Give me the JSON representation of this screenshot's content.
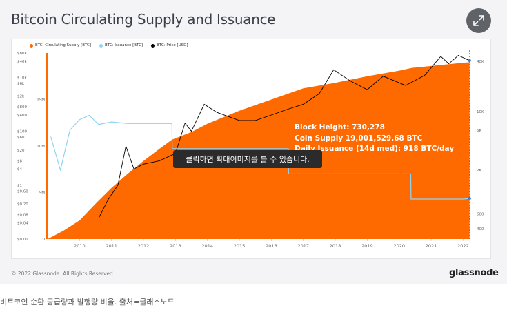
{
  "title": "Bitcoin Circulating Supply and Issuance",
  "expand_icon": "expand-arrows-icon",
  "tooltip": "클릭하면 확대이미지를 볼 수 있습니다.",
  "copyright": "© 2022 Glassnode. All Rights Reserved.",
  "brand": "glassnode",
  "caption": "비트코인 순환 공급량과 발행량 비율. 출처=글래스노드",
  "colors": {
    "supply": "#ff6a00",
    "issuance": "#8fd3f4",
    "price": "#000000",
    "marker": "#3a7bd5"
  },
  "chart_data": {
    "type": "area",
    "legend": [
      "BTC: Circulating Supply [BTC]",
      "BTC: Issuance [BTC]",
      "BTC: Price [USD]"
    ],
    "legend_placement": "top-left",
    "x_ticks": [
      "2010",
      "2011",
      "2012",
      "2013",
      "2014",
      "2015",
      "2016",
      "2017",
      "2018",
      "2019",
      "2020",
      "2021",
      "2022"
    ],
    "x_range": [
      2009.0,
      2022.25
    ],
    "price_axis_ticks": [
      "$80k",
      "$40k",
      "$10k",
      "$6k",
      "$2k",
      "$800",
      "$400",
      "$100",
      "$60",
      "$20",
      "$8",
      "$4",
      "$1",
      "$0.60",
      "$0.20",
      "$0.08",
      "$0.04",
      "$0.01"
    ],
    "supply_axis_ticks": [
      "15M",
      "10M",
      "5M",
      "0"
    ],
    "issuance_axis_ticks": [
      "40K",
      "10K",
      "6K",
      "2K",
      "600",
      "400"
    ],
    "annotation": {
      "block_height": "Block Height: 730,278",
      "coin_supply": "Coin Supply 19,001,529.68 BTC",
      "daily_issuance": "Daily Issuance (14d med): 918 BTC/day"
    },
    "series": [
      {
        "name": "BTC: Circulating Supply [BTC]",
        "x": [
          2009.0,
          2009.5,
          2010.0,
          2010.5,
          2011.0,
          2011.5,
          2012.0,
          2012.5,
          2012.9,
          2013.5,
          2014.0,
          2015.0,
          2016.0,
          2016.5,
          2017.0,
          2018.0,
          2019.0,
          2020.0,
          2020.4,
          2021.0,
          2022.0,
          2022.2
        ],
        "y": [
          0,
          900000,
          2000000,
          3800000,
          5500000,
          7000000,
          8400000,
          9700000,
          10700000,
          11500000,
          12400000,
          13800000,
          15000000,
          15600000,
          16200000,
          16800000,
          17500000,
          18100000,
          18400000,
          18600000,
          18950000,
          19001530
        ]
      },
      {
        "name": "BTC: Price [USD]",
        "x": [
          2010.6,
          2010.9,
          2011.2,
          2011.45,
          2011.7,
          2012.0,
          2012.5,
          2013.0,
          2013.3,
          2013.5,
          2013.9,
          2014.3,
          2015.0,
          2015.5,
          2016.0,
          2016.5,
          2017.0,
          2017.5,
          2017.95,
          2018.5,
          2019.0,
          2019.5,
          2020.2,
          2020.8,
          2021.3,
          2021.55,
          2021.85,
          2022.2
        ],
        "y": [
          0.06,
          0.3,
          1,
          28,
          4,
          6,
          8,
          15,
          200,
          100,
          1000,
          500,
          250,
          250,
          400,
          650,
          1000,
          2500,
          19000,
          7000,
          3500,
          11000,
          5000,
          12000,
          60000,
          32000,
          65000,
          42000
        ]
      },
      {
        "name": "BTC: Issuance [BTC]",
        "x": [
          2009.1,
          2009.4,
          2009.7,
          2010.0,
          2010.3,
          2010.6,
          2011.0,
          2011.5,
          2012.0,
          2012.5,
          2012.89,
          2012.9,
          2014.0,
          2015.0,
          2016.0,
          2016.53,
          2016.54,
          2017.0,
          2018.0,
          2019.0,
          2020.0,
          2020.36,
          2020.37,
          2021.0,
          2022.0,
          2022.2
        ],
        "y": [
          5000,
          2000,
          6000,
          8000,
          9000,
          7000,
          7500,
          7200,
          7200,
          7200,
          7200,
          3600,
          3600,
          3600,
          3600,
          3600,
          1800,
          1800,
          1800,
          1800,
          1800,
          1800,
          900,
          900,
          900,
          918
        ]
      }
    ]
  }
}
